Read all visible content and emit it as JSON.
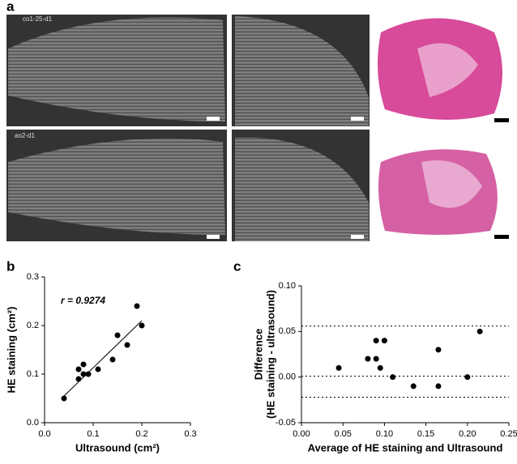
{
  "panels": {
    "a": "a",
    "b": "b",
    "c": "c"
  },
  "images": {
    "top_left_label": "co1-25-d1",
    "bottom_left_label": "ao2-d1"
  },
  "chart_data": [
    {
      "type": "scatter",
      "x_label": "Ultrasound (cm²)",
      "y_label": "HE staining (cm²)",
      "annotation": "r = 0.9274",
      "x": [
        0.04,
        0.07,
        0.07,
        0.08,
        0.08,
        0.09,
        0.11,
        0.14,
        0.15,
        0.17,
        0.19,
        0.2
      ],
      "values": [
        0.05,
        0.09,
        0.11,
        0.12,
        0.1,
        0.1,
        0.11,
        0.13,
        0.18,
        0.16,
        0.24,
        0.2
      ],
      "color": "#000000",
      "fit_line": {
        "x": [
          0.04,
          0.2
        ],
        "y": [
          0.055,
          0.21
        ]
      },
      "xlim": [
        0,
        0.3
      ],
      "xticks": [
        {
          "value": 0,
          "label": "0.0"
        },
        0.1,
        0.2,
        0.3
      ],
      "ylim": [
        0,
        0.3
      ],
      "yticks": [
        {
          "value": 0,
          "label": "0.0"
        },
        0.1,
        0.2,
        0.3
      ]
    },
    {
      "type": "scatter",
      "x_label": "Average of HE staining and Ultrasound",
      "y_label": [
        "Difference",
        "(HE staining - ultrasound)"
      ],
      "x": [
        0.045,
        0.08,
        0.09,
        0.09,
        0.095,
        0.1,
        0.11,
        0.135,
        0.165,
        0.165,
        0.2,
        0.215
      ],
      "values": [
        0.01,
        0.02,
        0.02,
        0.04,
        0.01,
        0.04,
        0.0,
        -0.01,
        0.03,
        -0.01,
        0.0,
        0.05
      ],
      "color": "#000000",
      "reference_lines": [
        0.056,
        0.001,
        -0.022
      ],
      "xlim": [
        0,
        0.25
      ],
      "xticks": [
        {
          "value": 0,
          "label": "0.00"
        },
        0.05,
        {
          "value": 0.1,
          "label": "0.10"
        },
        0.15,
        {
          "value": 0.2,
          "label": "0.20"
        },
        0.25
      ],
      "ylim": [
        -0.05,
        0.1
      ],
      "yticks": [
        -0.05,
        {
          "value": 0,
          "label": "0.00"
        },
        0.05,
        {
          "value": 0.1,
          "label": "0.10"
        }
      ]
    }
  ]
}
